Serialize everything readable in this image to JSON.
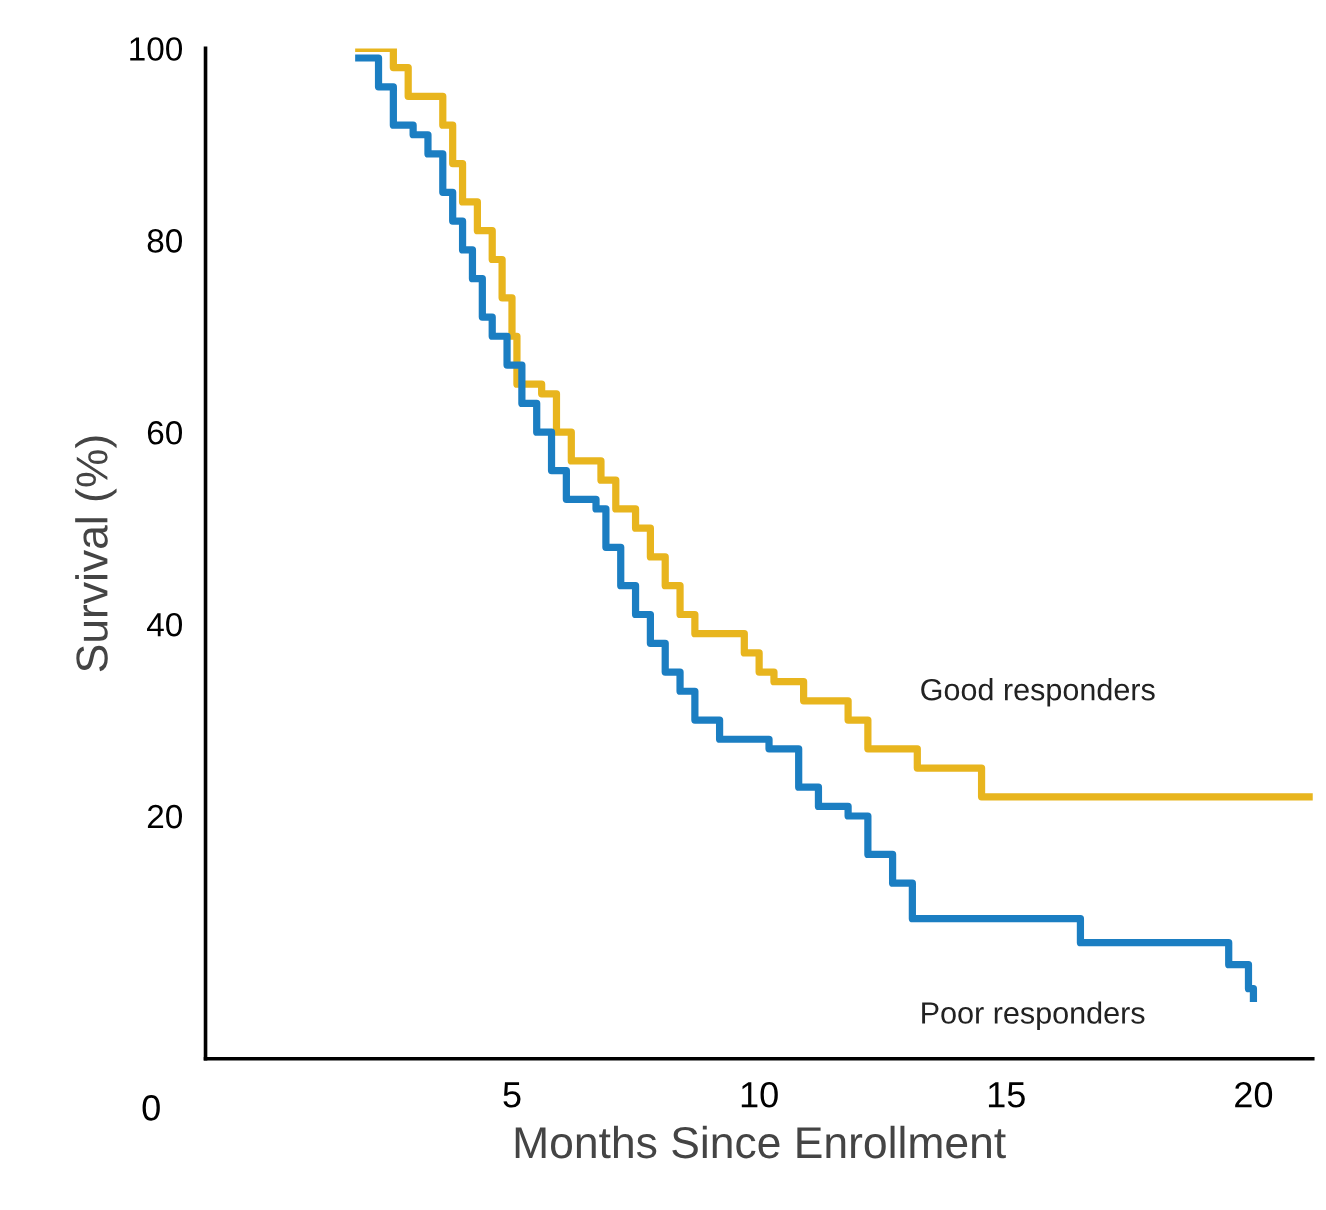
{
  "chart_data": {
    "type": "step",
    "xlabel": "Months Since Enrollment",
    "ylabel": "Survival (%)",
    "xlim": [
      -1.2,
      21.2
    ],
    "ylim": [
      -5.3,
      100
    ],
    "xticks": [
      5,
      10,
      15,
      20
    ],
    "yticks": [
      20,
      40,
      60,
      80,
      100
    ],
    "grid": false,
    "legend": false,
    "annotations": [
      "0"
    ],
    "series": [
      {
        "name": "Good responders",
        "color": "#e8b51e",
        "x": [
          1.9,
          2.6,
          2.9,
          3.4,
          3.6,
          3.8,
          4.0,
          4.3,
          4.6,
          4.8,
          5.0,
          5.1,
          5.6,
          5.9,
          6.2,
          6.8,
          7.1,
          7.5,
          7.8,
          8.1,
          8.4,
          8.7,
          9.7,
          10.0,
          10.3,
          10.9,
          11.8,
          12.2,
          13.2,
          14.5,
          21.2
        ],
        "values": [
          100,
          98,
          95,
          95,
          92,
          88,
          84,
          81,
          78,
          74,
          70,
          65,
          64,
          60,
          57,
          55,
          52,
          50,
          47,
          44,
          41,
          39,
          37,
          35,
          34,
          32,
          30,
          27,
          25,
          22,
          22
        ]
      },
      {
        "name": "Poor responders",
        "color": "#1b7ec2",
        "x": [
          1.9,
          2.3,
          2.6,
          3.0,
          3.3,
          3.6,
          3.8,
          4.0,
          4.2,
          4.4,
          4.6,
          4.9,
          5.2,
          5.5,
          5.8,
          6.1,
          6.7,
          6.9,
          7.2,
          7.5,
          7.8,
          8.1,
          8.4,
          8.7,
          9.2,
          10.2,
          10.8,
          11.2,
          11.8,
          12.2,
          12.7,
          13.1,
          16.5,
          19.5,
          19.9,
          20.0
        ],
        "values": [
          99,
          96,
          92,
          91,
          89,
          85,
          82,
          79,
          76,
          72,
          70,
          67,
          63,
          60,
          56,
          53,
          52,
          48,
          44,
          41,
          38,
          35,
          33,
          30,
          28,
          27,
          23,
          21,
          20,
          16,
          13,
          9.3,
          6.8,
          4.5,
          2,
          1
        ]
      }
    ]
  }
}
